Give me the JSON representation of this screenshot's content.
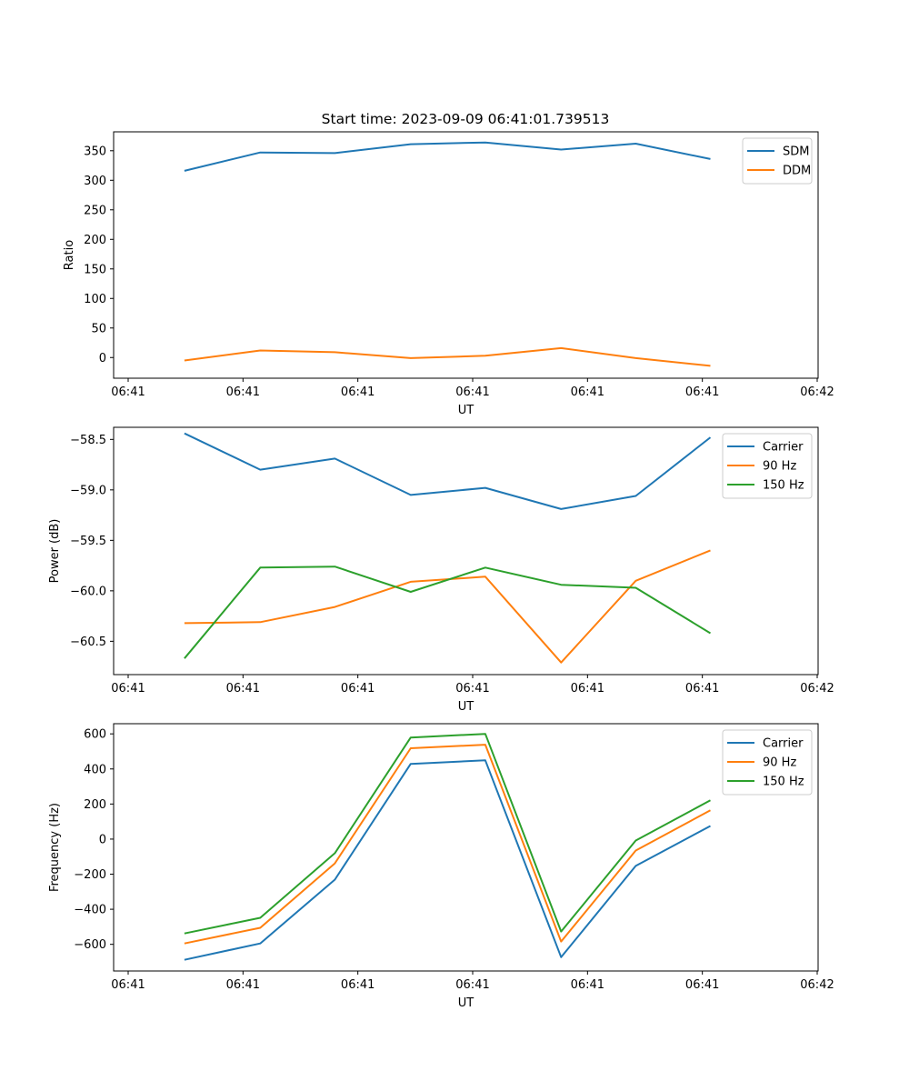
{
  "figure": {
    "title": "Start time: 2023-09-09 06:41:01.739513"
  },
  "colors": {
    "blue": "#1f77b4",
    "orange": "#ff7f0e",
    "green": "#2ca02c"
  },
  "chart_data": [
    {
      "type": "line",
      "title": "Start time: 2023-09-09 06:41:01.739513",
      "xlabel": "UT",
      "ylabel": "Ratio",
      "x_tick_labels": [
        "06:41",
        "06:41",
        "06:41",
        "06:41",
        "06:41",
        "06:41",
        "06:42"
      ],
      "xlim_ticks": [
        -0.12,
        6.0
      ],
      "x": [
        0.49,
        1.15,
        1.8,
        2.46,
        3.11,
        3.77,
        4.42,
        5.07
      ],
      "ylim": [
        -35,
        382
      ],
      "y_ticks": [
        0,
        50,
        100,
        150,
        200,
        250,
        300,
        350
      ],
      "y_tick_labels": [
        "0",
        "50",
        "100",
        "150",
        "200",
        "250",
        "300",
        "350"
      ],
      "legend": "top-right",
      "grid": false,
      "series": [
        {
          "name": "SDM",
          "color": "#1f77b4",
          "values": [
            316,
            347,
            346,
            361,
            364,
            352,
            362,
            336
          ]
        },
        {
          "name": "DDM",
          "color": "#ff7f0e",
          "values": [
            -5,
            12,
            9,
            -1,
            3,
            16,
            -1,
            -14
          ]
        }
      ]
    },
    {
      "type": "line",
      "title": "",
      "xlabel": "UT",
      "ylabel": "Power (dB)",
      "x_tick_labels": [
        "06:41",
        "06:41",
        "06:41",
        "06:41",
        "06:41",
        "06:41",
        "06:42"
      ],
      "xlim_ticks": [
        -0.12,
        6.0
      ],
      "x": [
        0.49,
        1.15,
        1.8,
        2.46,
        3.11,
        3.77,
        4.42,
        5.07
      ],
      "ylim": [
        -60.83,
        -58.38
      ],
      "y_ticks": [
        -60.5,
        -60.0,
        -59.5,
        -59.0,
        -58.5
      ],
      "y_tick_labels": [
        "−60.5",
        "−60.0",
        "−59.5",
        "−59.0",
        "−58.5"
      ],
      "legend": "top-right",
      "grid": false,
      "series": [
        {
          "name": "Carrier",
          "color": "#1f77b4",
          "values": [
            -58.44,
            -58.8,
            -58.69,
            -59.05,
            -58.98,
            -59.19,
            -59.06,
            -58.48
          ]
        },
        {
          "name": "90 Hz",
          "color": "#ff7f0e",
          "values": [
            -60.32,
            -60.31,
            -60.16,
            -59.91,
            -59.86,
            -60.71,
            -59.9,
            -59.6
          ]
        },
        {
          "name": "150 Hz",
          "color": "#2ca02c",
          "values": [
            -60.67,
            -59.77,
            -59.76,
            -60.01,
            -59.77,
            -59.94,
            -59.97,
            -60.42
          ]
        }
      ]
    },
    {
      "type": "line",
      "title": "",
      "xlabel": "UT",
      "ylabel": "Frequency (Hz)",
      "x_tick_labels": [
        "06:41",
        "06:41",
        "06:41",
        "06:41",
        "06:41",
        "06:41",
        "06:42"
      ],
      "xlim_ticks": [
        -0.12,
        6.0
      ],
      "x": [
        0.49,
        1.15,
        1.8,
        2.46,
        3.11,
        3.77,
        4.42,
        5.07
      ],
      "ylim": [
        -752,
        658
      ],
      "y_ticks": [
        -600,
        -400,
        -200,
        0,
        200,
        400,
        600
      ],
      "y_tick_labels": [
        "−600",
        "−400",
        "−200",
        "0",
        "200",
        "400",
        "600"
      ],
      "legend": "top-right",
      "grid": false,
      "series": [
        {
          "name": "Carrier",
          "color": "#1f77b4",
          "values": [
            -688,
            -595,
            -231,
            429,
            449,
            -673,
            -153,
            75
          ]
        },
        {
          "name": "90 Hz",
          "color": "#ff7f0e",
          "values": [
            -595,
            -506,
            -138,
            518,
            538,
            -584,
            -65,
            164
          ]
        },
        {
          "name": "150 Hz",
          "color": "#2ca02c",
          "values": [
            -538,
            -449,
            -80,
            579,
            600,
            -527,
            -8,
            221
          ]
        }
      ]
    }
  ]
}
